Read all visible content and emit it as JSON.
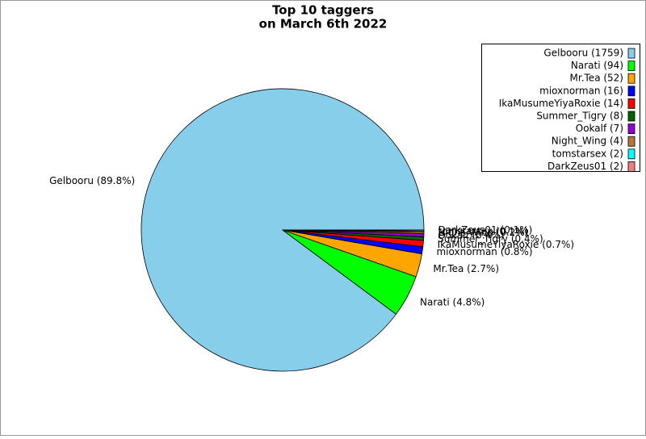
{
  "chart_data": {
    "type": "pie",
    "title": [
      "Top 10 taggers",
      "on March 6th 2022"
    ],
    "categories": [
      "Gelbooru (1759)",
      "Narati (94)",
      "Mr.Tea (52)",
      "mioxnorman (16)",
      "IkaMusumeYiyaRoxie (14)",
      "Summer_Tigry (8)",
      "Ookalf (7)",
      "Night_Wing (4)",
      "tomstarsex (2)",
      "DarkZeus01 (2)"
    ],
    "values": [
      1759,
      94,
      52,
      16,
      14,
      8,
      7,
      4,
      2,
      2
    ],
    "percent_labels": [
      "Gelbooru (89.8%)",
      "Narati (4.8%)",
      "Mr.Tea (2.7%)",
      "mioxnorman (0.8%)",
      "IkaMusumeYiyaRoxie (0.7%)",
      "Summer_Tigry (0.4%)",
      "Ookalf (0.4%)",
      "Night_Wing (0.2%)",
      "tomstarsex (0.1%)",
      "DarkZeus01 (0.1%)"
    ],
    "colors": [
      "#87ceeb",
      "#00ff00",
      "#ffa500",
      "#0000ff",
      "#ff0000",
      "#006400",
      "#9400d3",
      "#b8763a",
      "#00ffff",
      "#f08080"
    ],
    "legend": "upper right"
  }
}
